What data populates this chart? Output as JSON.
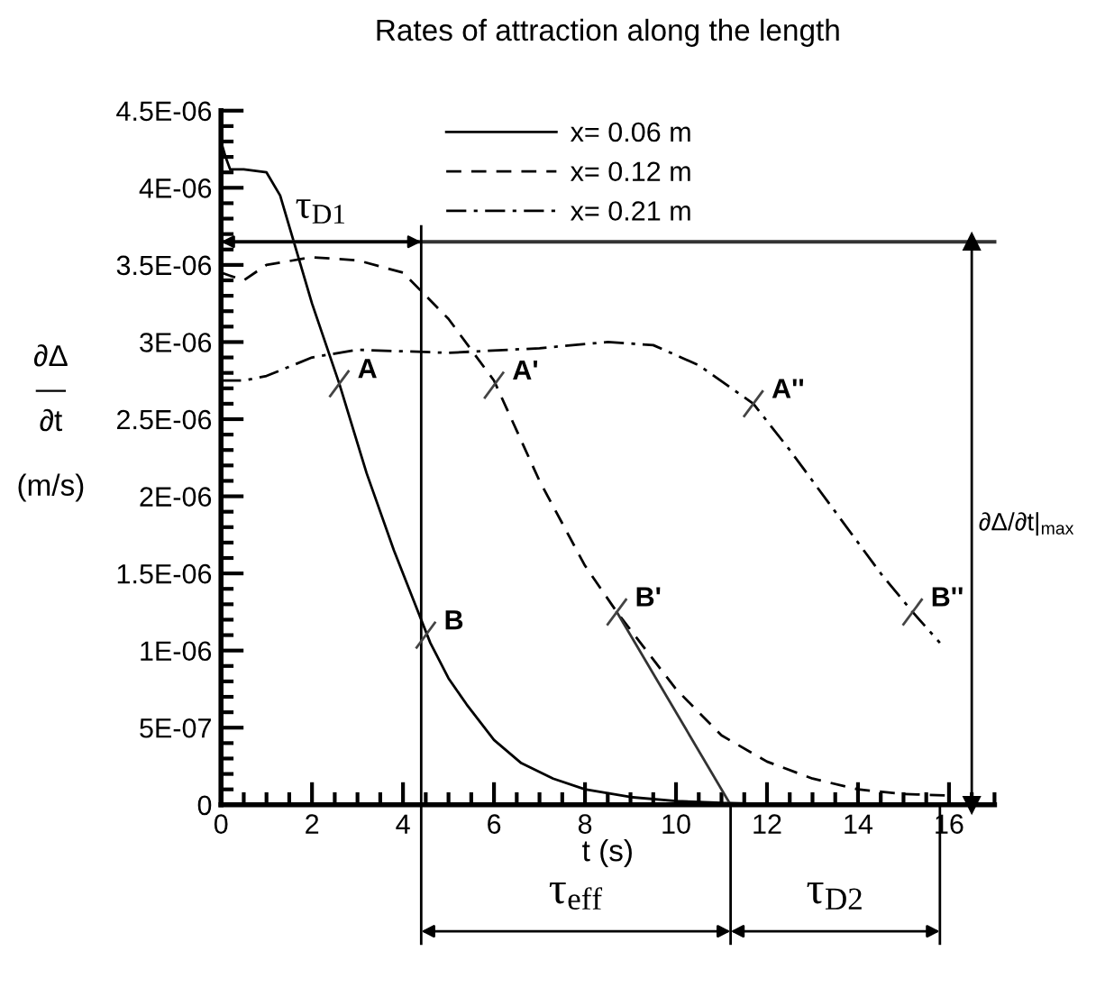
{
  "chart_data": {
    "type": "line",
    "title": "Rates of attraction along the length",
    "xlabel": "t (s)",
    "ylabel": "∂Δ\n―\n∂t\n\n(m/s)",
    "xlim": [
      0,
      17
    ],
    "xticks": [
      0,
      2,
      4,
      6,
      8,
      10,
      12,
      14,
      16
    ],
    "ylim": [
      0,
      4.5e-06
    ],
    "yticks": [
      {
        "value": 0,
        "label": "0"
      },
      {
        "value": 5e-07,
        "label": "5E-07"
      },
      {
        "value": 1e-06,
        "label": "1E-06"
      },
      {
        "value": 1.5e-06,
        "label": "1.5E-06"
      },
      {
        "value": 2e-06,
        "label": "2E-06"
      },
      {
        "value": 2.5e-06,
        "label": "2.5E-06"
      },
      {
        "value": 3e-06,
        "label": "3E-06"
      },
      {
        "value": 3.5e-06,
        "label": "3.5E-06"
      },
      {
        "value": 4e-06,
        "label": "4E-06"
      },
      {
        "value": 4.5e-06,
        "label": "4.5E-06"
      }
    ],
    "grid": false,
    "legend": "top",
    "series": [
      {
        "name": "x= 0.06 m",
        "color": "#000000",
        "line_style": "solid",
        "x": [
          0,
          0.1,
          0.2,
          0.5,
          1.0,
          1.3,
          1.6,
          2.0,
          2.6,
          3.2,
          3.8,
          4.4,
          4.6,
          5.0,
          5.4,
          6.0,
          6.6,
          7.3,
          8.0,
          9.0,
          10.0,
          11.0,
          12.0,
          13.0,
          13.6
        ],
        "values": [
          4.3e-06,
          4.2e-06,
          4.12e-06,
          4.12e-06,
          4.1e-06,
          3.95e-06,
          3.65e-06,
          3.25e-06,
          2.73e-06,
          2.15e-06,
          1.65e-06,
          1.2e-06,
          1.05e-06,
          8.2e-07,
          6.5e-07,
          4.2e-07,
          2.7e-07,
          1.7e-07,
          1e-07,
          5e-08,
          2.5e-08,
          1.2e-08,
          6e-09,
          3e-09,
          2e-09
        ]
      },
      {
        "name": "x= 0.12 m",
        "color": "#000000",
        "line_style": "dashed",
        "x": [
          0,
          0.5,
          1,
          2,
          3,
          4,
          5,
          6,
          7,
          8,
          8.7,
          10,
          11,
          12,
          13,
          14,
          15,
          16
        ],
        "values": [
          3.45e-06,
          3.4e-06,
          3.5e-06,
          3.55e-06,
          3.53e-06,
          3.45e-06,
          3.15e-06,
          2.75e-06,
          2.1e-06,
          1.55e-06,
          1.25e-06,
          7.5e-07,
          4.5e-07,
          2.8e-07,
          1.7e-07,
          1e-07,
          7e-08,
          6e-08
        ]
      },
      {
        "name": "x= 0.21 m",
        "color": "#000000",
        "line_style": "dashdot",
        "x": [
          0,
          0.5,
          1,
          2,
          3,
          5,
          7,
          8.5,
          9.5,
          10.5,
          11.7,
          12.5,
          13.5,
          14.5,
          15.2,
          15.8
        ],
        "values": [
          2.75e-06,
          2.75e-06,
          2.78e-06,
          2.9e-06,
          2.95e-06,
          2.93e-06,
          2.96e-06,
          3e-06,
          2.98e-06,
          2.85e-06,
          2.6e-06,
          2.3e-06,
          1.9e-06,
          1.5e-06,
          1.25e-06,
          1.05e-06
        ]
      },
      {
        "color": "#333333",
        "line_style": "solid",
        "x": [
          8.7,
          11.2
        ],
        "values": [
          1.25e-06,
          0
        ]
      },
      {
        "color": "#000000",
        "line_style": "solid",
        "marker": "triangle",
        "x": [
          16.5,
          16.5
        ],
        "values": [
          0,
          3.65e-06
        ]
      }
    ],
    "ref_lines": [
      {
        "axis": "y",
        "value": 3.65e-06,
        "color": "#333333"
      },
      {
        "axis": "x",
        "value": 4.4,
        "color": "#000000"
      }
    ],
    "annotations": [
      {
        "text": "τ$_{D1}$",
        "x": 2.2,
        "y": 3.65e-06
      },
      {
        "text": "A",
        "x": 2.6,
        "y": 2.73e-06
      },
      {
        "text": "B",
        "x": 4.5,
        "y": 1.1e-06
      },
      {
        "text": "A'",
        "x": 6.0,
        "y": 2.72e-06
      },
      {
        "text": "B'",
        "x": 8.7,
        "y": 1.25e-06
      },
      {
        "text": "A''",
        "x": 11.7,
        "y": 2.6e-06
      },
      {
        "text": "B''",
        "x": 15.2,
        "y": 1.25e-06
      },
      {
        "text": "∂Δ/∂t|$_{max}$",
        "x": 16.5,
        "y": 1.82e-06
      },
      "τ$_{eff}$",
      "τ$_{D2}$"
    ]
  }
}
